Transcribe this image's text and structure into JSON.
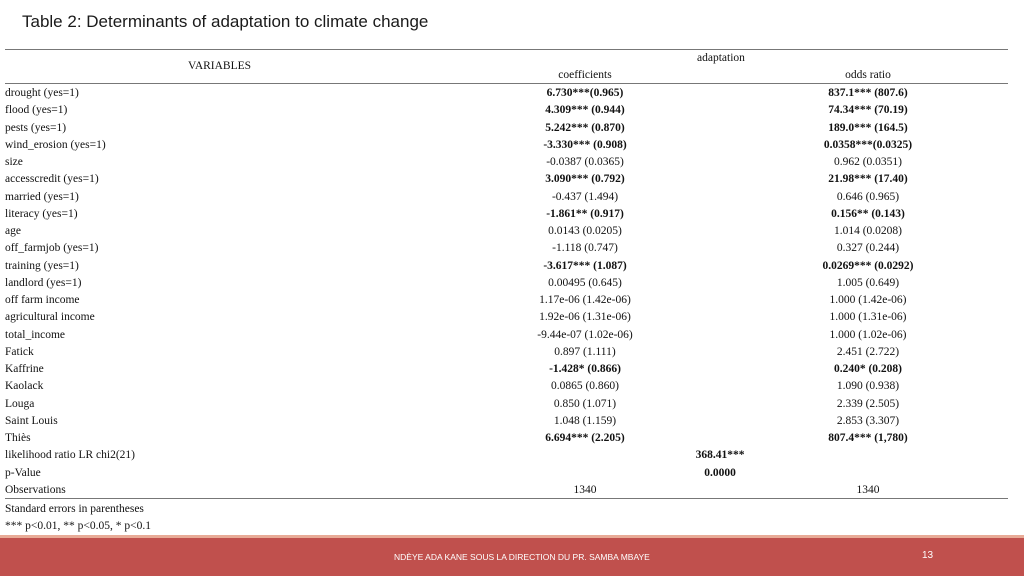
{
  "slide": {
    "title": "Table 2: Determinants of adaptation to climate change"
  },
  "table": {
    "header": {
      "variables": "VARIABLES",
      "group": "adaptation",
      "col1": "coefficients",
      "col2": "odds ratio"
    },
    "rows": [
      {
        "label": "drought (yes=1)",
        "c1": "6.730***(0.965)",
        "c2": "837.1*** (807.6)",
        "bold": true
      },
      {
        "label": "flood  (yes=1)",
        "c1": "4.309*** (0.944)",
        "c2": "74.34*** (70.19)",
        "bold": true
      },
      {
        "label": "pests  (yes=1)",
        "c1": "5.242*** (0.870)",
        "c2": "189.0*** (164.5)",
        "bold": true
      },
      {
        "label": "wind_erosion  (yes=1)",
        "c1": "-3.330*** (0.908)",
        "c2": "0.0358***(0.0325)",
        "bold": true
      },
      {
        "label": "size",
        "c1": "-0.0387 (0.0365)",
        "c2": "0.962 (0.0351)",
        "bold": false
      },
      {
        "label": "accesscredit   (yes=1)",
        "c1": "3.090*** (0.792)",
        "c2": "21.98*** (17.40)",
        "bold": true
      },
      {
        "label": "married  (yes=1)",
        "c1": "-0.437 (1.494)",
        "c2": "0.646 (0.965)",
        "bold": false
      },
      {
        "label": "literacy  (yes=1)",
        "c1": "-1.861** (0.917)",
        "c2": "0.156** (0.143)",
        "bold": true
      },
      {
        "label": "age",
        "c1": "0.0143 (0.0205)",
        "c2": "1.014 (0.0208)",
        "bold": false
      },
      {
        "label": "off_farmjob  (yes=1)",
        "c1": "-1.118 (0.747)",
        "c2": "0.327 (0.244)",
        "bold": false
      },
      {
        "label": "training  (yes=1)",
        "c1": "-3.617*** (1.087)",
        "c2": "0.0269*** (0.0292)",
        "bold": true
      },
      {
        "label": "landlord  (yes=1)",
        "c1": "0.00495 (0.645)",
        "c2": "1.005 (0.649)",
        "bold": false
      },
      {
        "label": "off farm income",
        "c1": "1.17e-06 (1.42e-06)",
        "c2": "1.000 (1.42e-06)",
        "bold": false
      },
      {
        "label": "agricultural income",
        "c1": "1.92e-06 (1.31e-06)",
        "c2": "1.000 (1.31e-06)",
        "bold": false
      },
      {
        "label": "total_income",
        "c1": "-9.44e-07 (1.02e-06)",
        "c2": "1.000 (1.02e-06)",
        "bold": false
      },
      {
        "label": "Fatick",
        "c1": "0.897 (1.111)",
        "c2": "2.451 (2.722)",
        "bold": false
      },
      {
        "label": "Kaffrine",
        "c1": "-1.428* (0.866)",
        "c2": "0.240* (0.208)",
        "bold": true
      },
      {
        "label": "Kaolack",
        "c1": "0.0865 (0.860)",
        "c2": "1.090 (0.938)",
        "bold": false
      },
      {
        "label": "Louga",
        "c1": "0.850 (1.071)",
        "c2": "2.339 (2.505)",
        "bold": false
      },
      {
        "label": "Saint Louis",
        "c1": "1.048 (1.159)",
        "c2": "2.853 (3.307)",
        "bold": false
      },
      {
        "label": "Thiès",
        "c1": "6.694*** (2.205)",
        "c2": "807.4*** (1,780)",
        "bold": true
      }
    ],
    "likelihood": {
      "label": " likelihood ratio LR chi2(21)",
      "value": "368.41***"
    },
    "pvalue": {
      "label": "p-Value",
      "value": "0.0000"
    },
    "observations": {
      "label": "Observations",
      "c1": "1340",
      "c2": "1340"
    },
    "notes": [
      "Standard errors in parentheses",
      "*** p<0.01, ** p<0.05, * p<0.1"
    ]
  },
  "footer": {
    "text": "NDÈYE ADA KANE SOUS LA DIRECTION DU PR. SAMBA MBAYE",
    "page": "13",
    "color": "#c0504d"
  }
}
